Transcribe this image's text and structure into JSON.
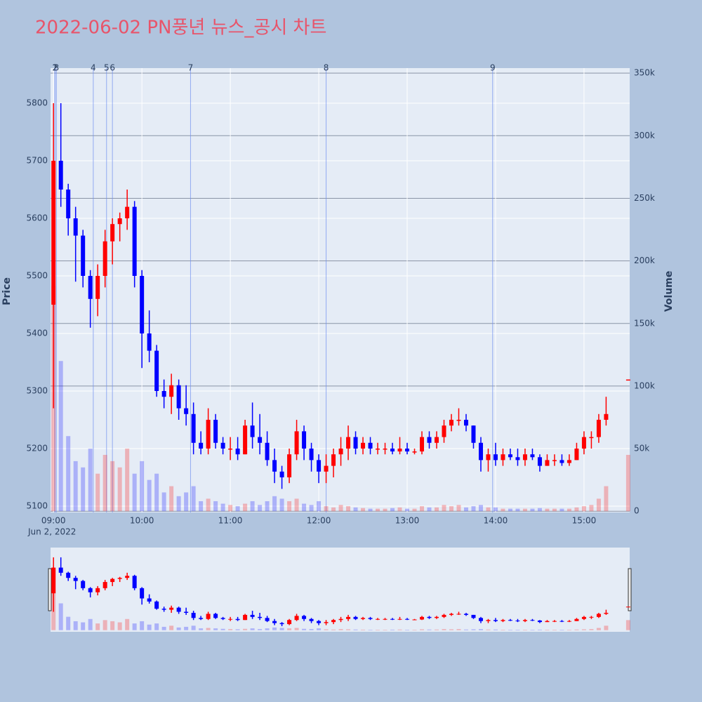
{
  "chart_data": {
    "type": "candlestick",
    "title": "2022-06-02 PN풍년 뉴스_공시 차트",
    "x_sublabel": "Jun 2, 2022",
    "ylabel": "Price",
    "y2label": "Volume",
    "up_color": "#ff0000",
    "down_color": "#0000ff",
    "grid": true,
    "range_slider": true,
    "x": [
      "09:00",
      "09:05",
      "09:10",
      "09:15",
      "09:20",
      "09:25",
      "09:30",
      "09:35",
      "09:40",
      "09:45",
      "09:50",
      "09:55",
      "10:00",
      "10:05",
      "10:10",
      "10:15",
      "10:20",
      "10:25",
      "10:30",
      "10:35",
      "10:40",
      "10:45",
      "10:50",
      "10:55",
      "11:00",
      "11:05",
      "11:10",
      "11:15",
      "11:20",
      "11:25",
      "11:30",
      "11:35",
      "11:40",
      "11:45",
      "11:50",
      "11:55",
      "12:00",
      "12:05",
      "12:10",
      "12:15",
      "12:20",
      "12:25",
      "12:30",
      "12:35",
      "12:40",
      "12:45",
      "12:50",
      "12:55",
      "13:00",
      "13:05",
      "13:10",
      "13:15",
      "13:20",
      "13:25",
      "13:30",
      "13:35",
      "13:40",
      "13:45",
      "13:50",
      "13:55",
      "14:00",
      "14:05",
      "14:10",
      "14:15",
      "14:20",
      "14:25",
      "14:30",
      "14:35",
      "14:40",
      "14:45",
      "14:50",
      "14:55",
      "15:00",
      "15:05",
      "15:10",
      "15:15",
      "15:30"
    ],
    "open": [
      5450,
      5700,
      5650,
      5600,
      5570,
      5500,
      5460,
      5500,
      5560,
      5590,
      5600,
      5620,
      5500,
      5400,
      5370,
      5300,
      5290,
      5310,
      5270,
      5260,
      5210,
      5200,
      5250,
      5210,
      5200,
      5200,
      5190,
      5240,
      5220,
      5210,
      5180,
      5160,
      5150,
      5190,
      5230,
      5200,
      5180,
      5160,
      5170,
      5190,
      5200,
      5220,
      5200,
      5210,
      5200,
      5200,
      5200,
      5195,
      5200,
      5195,
      5195,
      5220,
      5210,
      5220,
      5240,
      5250,
      5250,
      5240,
      5210,
      5180,
      5190,
      5180,
      5190,
      5185,
      5180,
      5190,
      5185,
      5170,
      5180,
      5180,
      5175,
      5180,
      5200,
      5220,
      5220,
      5250,
      5320
    ],
    "high": [
      5800,
      5800,
      5660,
      5620,
      5580,
      5510,
      5520,
      5580,
      5600,
      5610,
      5650,
      5630,
      5510,
      5440,
      5380,
      5320,
      5330,
      5320,
      5310,
      5280,
      5230,
      5270,
      5260,
      5220,
      5220,
      5220,
      5250,
      5280,
      5260,
      5230,
      5200,
      5170,
      5200,
      5250,
      5240,
      5210,
      5190,
      5190,
      5200,
      5220,
      5240,
      5230,
      5220,
      5220,
      5210,
      5210,
      5210,
      5220,
      5210,
      5200,
      5230,
      5230,
      5230,
      5250,
      5260,
      5270,
      5260,
      5240,
      5220,
      5200,
      5210,
      5200,
      5200,
      5200,
      5200,
      5200,
      5190,
      5190,
      5190,
      5190,
      5190,
      5210,
      5230,
      5230,
      5260,
      5290,
      5320
    ],
    "low": [
      5270,
      5620,
      5570,
      5490,
      5480,
      5410,
      5430,
      5480,
      5520,
      5560,
      5580,
      5480,
      5340,
      5350,
      5290,
      5270,
      5260,
      5250,
      5240,
      5190,
      5190,
      5190,
      5200,
      5190,
      5180,
      5180,
      5190,
      5200,
      5190,
      5170,
      5140,
      5130,
      5140,
      5180,
      5180,
      5160,
      5140,
      5140,
      5150,
      5170,
      5180,
      5190,
      5190,
      5190,
      5190,
      5190,
      5190,
      5190,
      5190,
      5190,
      5190,
      5200,
      5200,
      5210,
      5230,
      5240,
      5230,
      5200,
      5160,
      5160,
      5170,
      5170,
      5180,
      5170,
      5170,
      5180,
      5160,
      5170,
      5170,
      5170,
      5170,
      5180,
      5190,
      5200,
      5210,
      5240,
      5320
    ],
    "close": [
      5700,
      5650,
      5600,
      5570,
      5500,
      5460,
      5500,
      5560,
      5590,
      5600,
      5620,
      5500,
      5400,
      5370,
      5300,
      5290,
      5310,
      5270,
      5260,
      5210,
      5200,
      5250,
      5210,
      5200,
      5200,
      5190,
      5240,
      5220,
      5210,
      5180,
      5160,
      5150,
      5190,
      5230,
      5200,
      5180,
      5160,
      5170,
      5190,
      5200,
      5220,
      5200,
      5210,
      5200,
      5200,
      5200,
      5195,
      5200,
      5195,
      5195,
      5220,
      5210,
      5220,
      5240,
      5250,
      5250,
      5240,
      5210,
      5180,
      5190,
      5180,
      5190,
      5185,
      5180,
      5190,
      5185,
      5170,
      5180,
      5180,
      5175,
      5180,
      5200,
      5220,
      5220,
      5250,
      5260,
      5320
    ],
    "volume": [
      180000,
      120000,
      60000,
      40000,
      35000,
      50000,
      30000,
      45000,
      40000,
      35000,
      50000,
      30000,
      40000,
      25000,
      30000,
      15000,
      20000,
      12000,
      15000,
      20000,
      8000,
      10000,
      8000,
      6000,
      5000,
      4000,
      6000,
      8000,
      5000,
      8000,
      12000,
      10000,
      8000,
      10000,
      6000,
      5000,
      8000,
      4000,
      3000,
      5000,
      4000,
      3000,
      2500,
      2000,
      2000,
      2000,
      2500,
      3000,
      2000,
      2000,
      4000,
      3000,
      3000,
      5000,
      4000,
      5000,
      3000,
      4000,
      5000,
      3000,
      3000,
      2000,
      2000,
      2000,
      2000,
      2000,
      2500,
      2000,
      2000,
      2000,
      2000,
      3000,
      4000,
      5000,
      10000,
      20000,
      45000
    ],
    "xlim": [
      "08:58",
      "15:31"
    ],
    "xticks": [
      "09:00",
      "10:00",
      "11:00",
      "12:00",
      "13:00",
      "14:00",
      "15:00"
    ],
    "ylim": [
      5089,
      5861
    ],
    "yticks": [
      5100,
      5200,
      5300,
      5400,
      5500,
      5600,
      5700,
      5800
    ],
    "y2lim": [
      -1000,
      354000
    ],
    "y2ticks": [
      0,
      {
        "value": 50000,
        "label": "50k"
      },
      {
        "value": 100000,
        "label": "100k"
      },
      {
        "value": 150000,
        "label": "150k"
      },
      {
        "value": 200000,
        "label": "200k"
      },
      {
        "value": 250000,
        "label": "250k"
      },
      {
        "value": 300000,
        "label": "300k"
      },
      {
        "value": 350000,
        "label": "350k"
      }
    ],
    "news": [
      {
        "label": "1",
        "x": "09:01"
      },
      {
        "label": "2",
        "x": "09:01"
      },
      {
        "label": "3",
        "x": "09:02"
      },
      {
        "label": "4",
        "x": "09:27"
      },
      {
        "label": "5",
        "x": "09:36"
      },
      {
        "label": "6",
        "x": "09:40"
      },
      {
        "label": "7",
        "x": "10:33"
      },
      {
        "label": "8",
        "x": "12:05"
      },
      {
        "label": "9",
        "x": "13:58"
      }
    ]
  }
}
